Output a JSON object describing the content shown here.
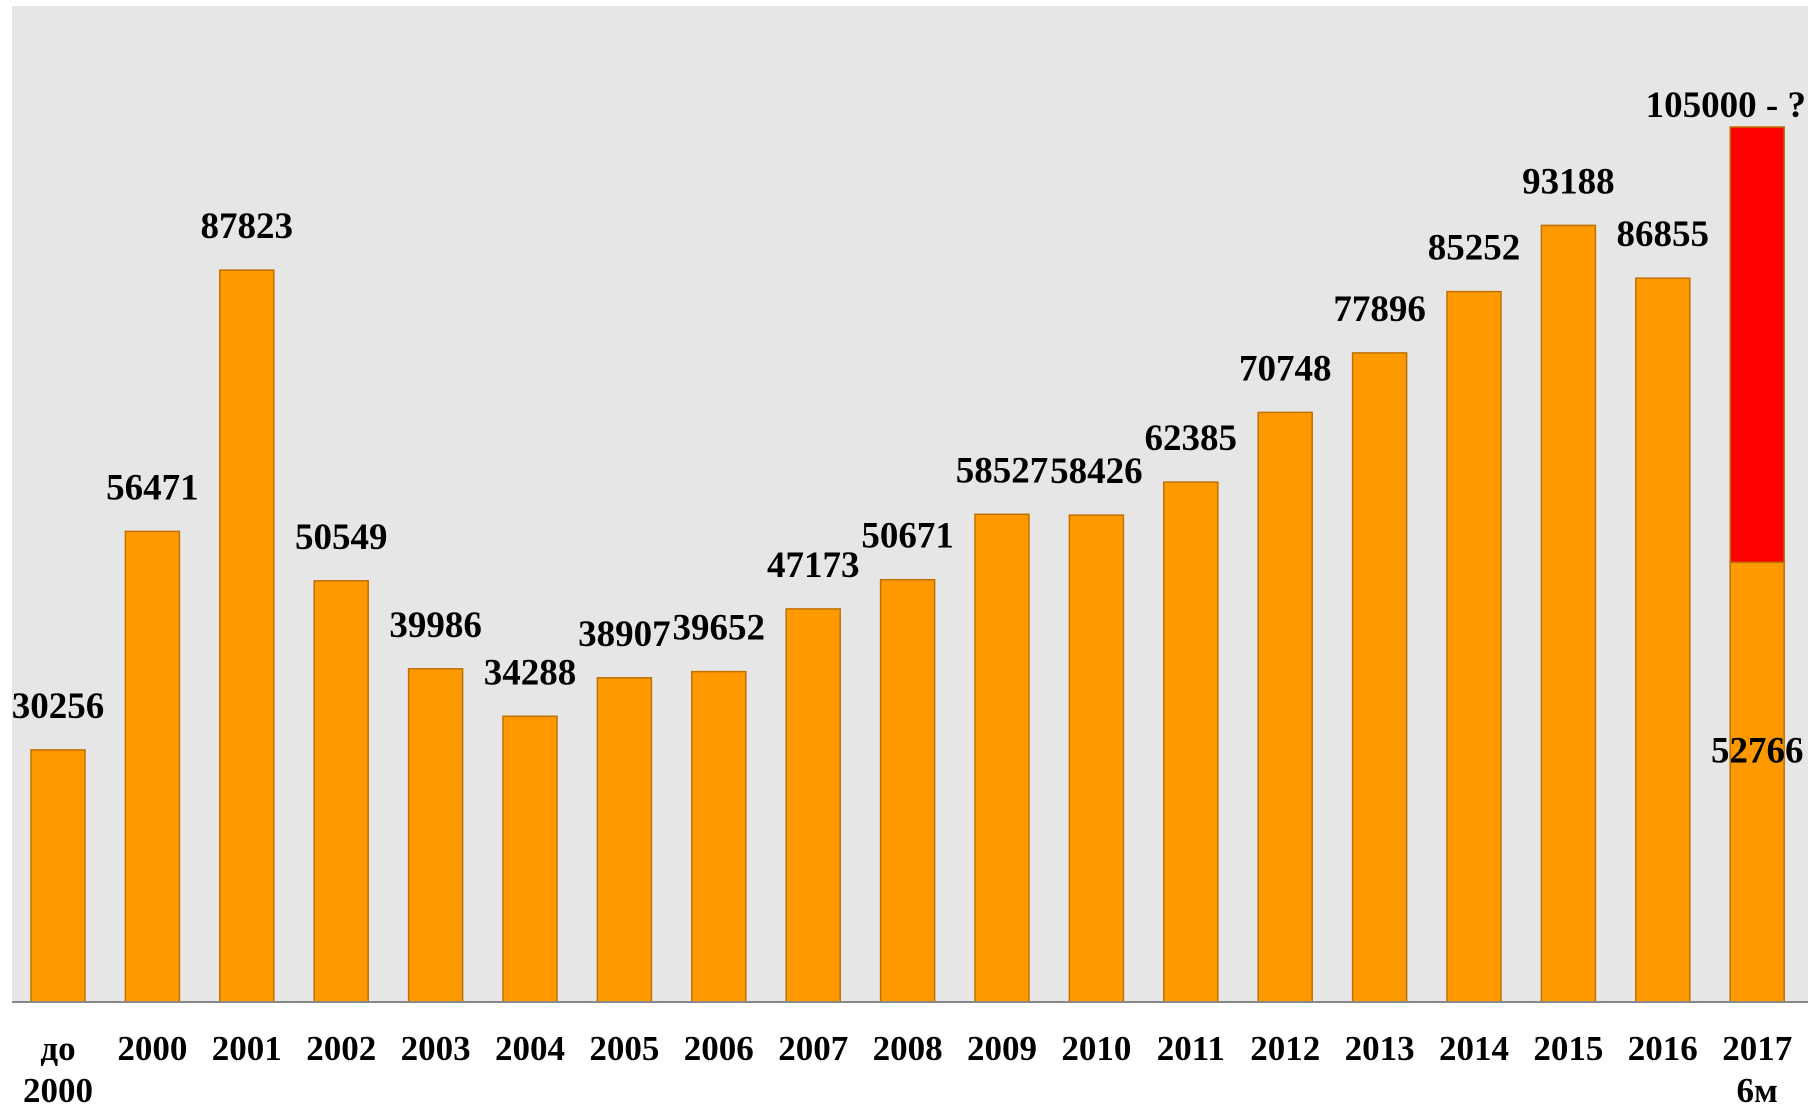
{
  "chart_data": {
    "type": "bar",
    "title": "",
    "xlabel": "",
    "ylabel": "",
    "ylim": [
      0,
      105000
    ],
    "grid": false,
    "legend": "none",
    "categories": [
      [
        "до",
        "2000"
      ],
      [
        "2000"
      ],
      [
        "2001"
      ],
      [
        "2002"
      ],
      [
        "2003"
      ],
      [
        "2004"
      ],
      [
        "2005"
      ],
      [
        "2006"
      ],
      [
        "2007"
      ],
      [
        "2008"
      ],
      [
        "2009"
      ],
      [
        "2010"
      ],
      [
        "2011"
      ],
      [
        "2012"
      ],
      [
        "2013"
      ],
      [
        "2014"
      ],
      [
        "2015"
      ],
      [
        "2016"
      ],
      [
        "2017",
        "6м"
      ]
    ],
    "values": [
      30256,
      56471,
      87823,
      50549,
      39986,
      34288,
      38907,
      39652,
      47173,
      50671,
      58527,
      58426,
      62385,
      70748,
      77896,
      85252,
      93188,
      86855,
      52766
    ],
    "labels": [
      "30256",
      "56471",
      "87823",
      "50549",
      "39986",
      "34288",
      "38907",
      "39652",
      "47173",
      "50671",
      "58527",
      "58426",
      "62385",
      "70748",
      "77896",
      "85252",
      "93188",
      "86855",
      "52766"
    ],
    "projection": {
      "category_index": 18,
      "total": 105000,
      "label": "105000 - ?"
    },
    "colors": {
      "bar": "#ff9900",
      "bar_edge": "#c07000",
      "projection": "#ff0000",
      "background": "#e6e6e6",
      "axis": "#888888"
    }
  }
}
